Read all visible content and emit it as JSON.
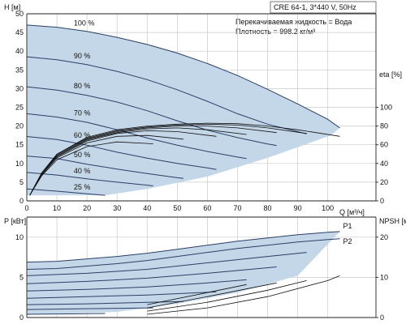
{
  "header": {
    "model_info": "CRE 64-1, 3*440 V, 50Hz",
    "fluid_label": "Перекачиваемая жидкость = Вода",
    "density_label": "Плотность = 998.2 кг/м³"
  },
  "chart_data": [
    {
      "type": "line",
      "title": "",
      "xlabel": "Q [м³/ч]",
      "ylabel": "H [м]",
      "y2label": "eta [%]",
      "xlim": [
        0,
        116
      ],
      "ylim": [
        0,
        50
      ],
      "xticks": [
        0,
        10,
        20,
        30,
        40,
        50,
        60,
        70,
        80,
        90,
        100
      ],
      "yticks": [
        0,
        5,
        10,
        15,
        20,
        25,
        30,
        35,
        40,
        45,
        50
      ],
      "y2ticks": [
        0,
        20,
        40,
        60,
        80,
        100
      ],
      "y2lim": [
        0,
        100
      ],
      "grid": true,
      "series": [
        {
          "name": "100 %",
          "x": [
            0,
            10,
            20,
            30,
            40,
            50,
            60,
            70,
            80,
            90,
            100,
            104
          ],
          "y": [
            47,
            46.4,
            45.3,
            43.7,
            41.8,
            39.5,
            36.7,
            33.5,
            29.8,
            25.9,
            21.8,
            19.5
          ]
        },
        {
          "name": "90 %",
          "x": [
            0,
            10,
            20,
            30,
            40,
            50,
            60,
            70,
            80,
            90,
            93
          ],
          "y": [
            38.5,
            37.7,
            36.4,
            34.6,
            32.4,
            29.7,
            26.6,
            23.3,
            20.5,
            18.5,
            17.9
          ]
        },
        {
          "name": "80 %",
          "x": [
            0,
            10,
            20,
            30,
            40,
            50,
            60,
            70,
            80,
            83
          ],
          "y": [
            30.5,
            29.6,
            28.2,
            26.4,
            24.1,
            21.4,
            18.9,
            16.9,
            15.2,
            14.8
          ]
        },
        {
          "name": "70 %",
          "x": [
            0,
            10,
            20,
            30,
            40,
            50,
            60,
            70,
            73
          ],
          "y": [
            23.3,
            22.4,
            21.0,
            19.0,
            16.8,
            14.9,
            13.2,
            11.7,
            11.3
          ]
        },
        {
          "name": "60 %",
          "x": [
            0,
            10,
            20,
            30,
            40,
            50,
            60,
            63
          ],
          "y": [
            17.2,
            16.4,
            14.9,
            13.0,
            11.4,
            10.0,
            8.8,
            8.4
          ]
        },
        {
          "name": "50 %",
          "x": [
            0,
            10,
            20,
            30,
            40,
            50,
            52
          ],
          "y": [
            12.0,
            11.3,
            9.8,
            8.5,
            7.3,
            6.2,
            6.0
          ]
        },
        {
          "name": "40 %",
          "x": [
            0,
            10,
            20,
            30,
            40,
            42
          ],
          "y": [
            7.6,
            6.9,
            5.9,
            5.0,
            4.2,
            4.0
          ]
        },
        {
          "name": "25 %",
          "x": [
            0,
            10,
            20,
            26
          ],
          "y": [
            3.2,
            2.6,
            1.9,
            1.5
          ]
        }
      ],
      "efficiency_curves": [
        {
          "x": [
            1,
            5,
            10,
            20,
            30,
            40,
            50,
            60,
            70,
            80,
            90,
            104
          ],
          "y": [
            6,
            30,
            50,
            68,
            76,
            80,
            82,
            83,
            82.5,
            80,
            76,
            69
          ]
        },
        {
          "x": [
            1,
            5,
            10,
            20,
            30,
            40,
            50,
            60,
            70,
            80,
            93
          ],
          "y": [
            6,
            30,
            50,
            67,
            75,
            79,
            81,
            82,
            81,
            78,
            72
          ]
        },
        {
          "x": [
            1,
            5,
            10,
            20,
            30,
            40,
            50,
            60,
            70,
            83
          ],
          "y": [
            6,
            30,
            49,
            66,
            74,
            78,
            80,
            80,
            78,
            73
          ]
        },
        {
          "x": [
            1,
            5,
            10,
            20,
            30,
            40,
            50,
            60,
            73
          ],
          "y": [
            6,
            30,
            48,
            65,
            73,
            77,
            78,
            76,
            71
          ]
        },
        {
          "x": [
            1,
            5,
            10,
            20,
            30,
            40,
            50,
            63
          ],
          "y": [
            6,
            29,
            47,
            64,
            72,
            75,
            74,
            69
          ]
        },
        {
          "x": [
            1,
            5,
            10,
            20,
            30,
            40,
            52
          ],
          "y": [
            6,
            28,
            46,
            62,
            69,
            70,
            66
          ]
        },
        {
          "x": [
            1,
            5,
            10,
            20,
            30,
            42
          ],
          "y": [
            6,
            27,
            44,
            58,
            63,
            61
          ]
        }
      ]
    },
    {
      "type": "line",
      "title": "",
      "xlabel": "",
      "ylabel": "P [кВт]",
      "y2label": "NPSH [м]",
      "xlim": [
        0,
        116
      ],
      "ylim": [
        0,
        12.5
      ],
      "xticks": [
        0,
        10,
        20,
        30,
        40,
        50,
        60,
        70,
        80,
        90,
        100
      ],
      "yticks": [
        0,
        5,
        10
      ],
      "y2ticks": [
        0,
        10,
        20
      ],
      "y2lim": [
        0,
        25
      ],
      "grid": true,
      "series": [
        {
          "name": "P1",
          "x": [
            0,
            10,
            20,
            30,
            40,
            50,
            60,
            70,
            80,
            90,
            100,
            104
          ],
          "y": [
            6.9,
            7.0,
            7.3,
            7.6,
            8.0,
            8.5,
            9.0,
            9.5,
            9.9,
            10.3,
            10.6,
            10.7
          ]
        },
        {
          "name": "P2",
          "x": [
            0,
            10,
            20,
            30,
            40,
            50,
            60,
            70,
            80,
            90,
            100,
            104
          ],
          "y": [
            6.0,
            6.1,
            6.4,
            6.7,
            7.1,
            7.6,
            8.1,
            8.6,
            9.0,
            9.4,
            9.7,
            9.8
          ]
        },
        {
          "name": "",
          "x": [
            0,
            20,
            40,
            60,
            80,
            93
          ],
          "y": [
            5.2,
            5.5,
            6.0,
            6.8,
            7.6,
            8.1
          ]
        },
        {
          "name": "",
          "x": [
            0,
            20,
            40,
            60,
            83
          ],
          "y": [
            4.2,
            4.5,
            4.9,
            5.5,
            6.3
          ]
        },
        {
          "name": "",
          "x": [
            0,
            20,
            40,
            60,
            73
          ],
          "y": [
            3.3,
            3.5,
            3.8,
            4.3,
            4.7
          ]
        },
        {
          "name": "",
          "x": [
            0,
            20,
            40,
            63
          ],
          "y": [
            2.4,
            2.6,
            2.8,
            3.2
          ]
        },
        {
          "name": "",
          "x": [
            0,
            20,
            40,
            52
          ],
          "y": [
            1.6,
            1.7,
            1.9,
            2.0
          ]
        },
        {
          "name": "",
          "x": [
            0,
            20,
            42
          ],
          "y": [
            1.0,
            1.1,
            1.2
          ]
        },
        {
          "name": "",
          "x": [
            0,
            15,
            26
          ],
          "y": [
            0.4,
            0.45,
            0.5
          ]
        }
      ],
      "npsh_curves": [
        {
          "x": [
            40,
            60,
            80,
            100,
            104
          ],
          "y": [
            0.4,
            1.2,
            2.6,
            4.6,
            5.2
          ]
        },
        {
          "x": [
            40,
            60,
            80,
            93
          ],
          "y": [
            0.8,
            1.9,
            3.4,
            4.6
          ]
        },
        {
          "x": [
            40,
            60,
            83
          ],
          "y": [
            1.2,
            2.6,
            4.3
          ]
        },
        {
          "x": [
            40,
            60,
            73
          ],
          "y": [
            1.6,
            3.1,
            4.1
          ]
        }
      ]
    }
  ]
}
